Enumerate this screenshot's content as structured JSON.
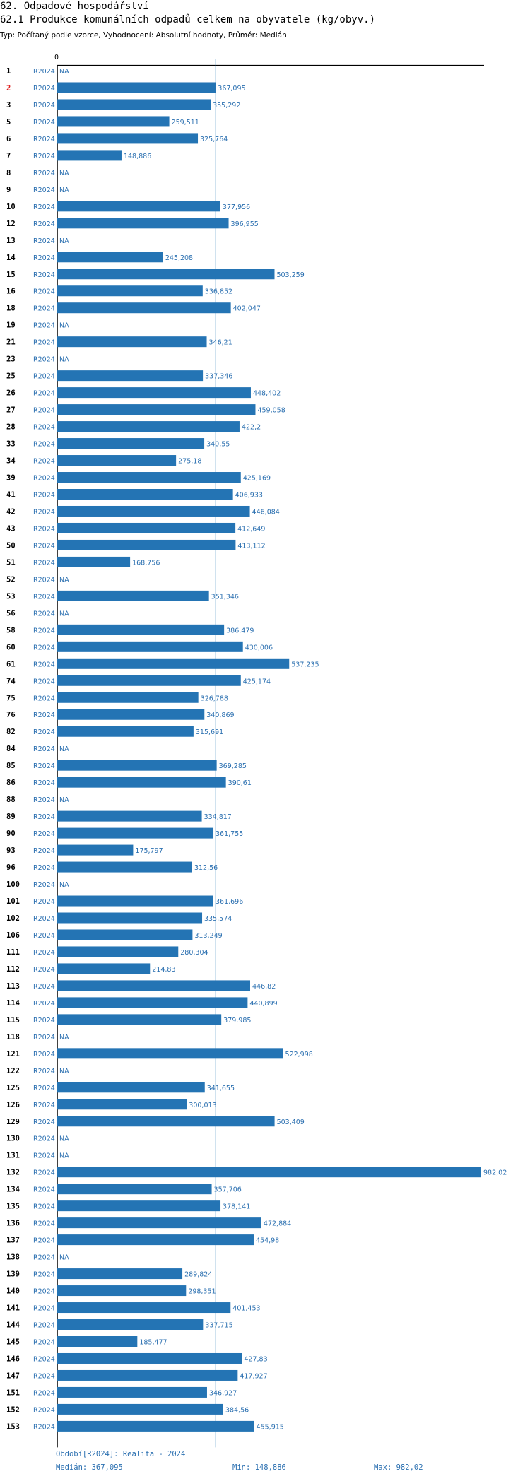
{
  "header": {
    "title": "62. Odpadové hospodářství",
    "subtitle": "62.1 Produkce komunálních odpadů celkem na obyvatele (kg/obyv.)",
    "type_line": "Typ: Počítaný podle vzorce, Vyhodnocení: Absolutní hodnoty, Průměr: Medián"
  },
  "colors": {
    "bar": "#2474b4",
    "label": "#2a6fb0",
    "highlight": "#e02020",
    "axis": "#000000"
  },
  "chart_data": {
    "type": "bar",
    "orientation": "horizontal",
    "period": "R2024",
    "zero_label": "0",
    "highlight_id": "2",
    "median": 367.095,
    "max_axis": 982.02,
    "rows": [
      {
        "id": "1",
        "period": "R2024",
        "value": null,
        "label": "NA"
      },
      {
        "id": "2",
        "period": "R2024",
        "value": 367.095,
        "label": "367,095"
      },
      {
        "id": "3",
        "period": "R2024",
        "value": 355.292,
        "label": "355,292"
      },
      {
        "id": "5",
        "period": "R2024",
        "value": 259.511,
        "label": "259,511"
      },
      {
        "id": "6",
        "period": "R2024",
        "value": 325.764,
        "label": "325,764"
      },
      {
        "id": "7",
        "period": "R2024",
        "value": 148.886,
        "label": "148,886"
      },
      {
        "id": "8",
        "period": "R2024",
        "value": null,
        "label": "NA"
      },
      {
        "id": "9",
        "period": "R2024",
        "value": null,
        "label": "NA"
      },
      {
        "id": "10",
        "period": "R2024",
        "value": 377.956,
        "label": "377,956"
      },
      {
        "id": "12",
        "period": "R2024",
        "value": 396.955,
        "label": "396,955"
      },
      {
        "id": "13",
        "period": "R2024",
        "value": null,
        "label": "NA"
      },
      {
        "id": "14",
        "period": "R2024",
        "value": 245.208,
        "label": "245,208"
      },
      {
        "id": "15",
        "period": "R2024",
        "value": 503.259,
        "label": "503,259"
      },
      {
        "id": "16",
        "period": "R2024",
        "value": 336.852,
        "label": "336,852"
      },
      {
        "id": "18",
        "period": "R2024",
        "value": 402.047,
        "label": "402,047"
      },
      {
        "id": "19",
        "period": "R2024",
        "value": null,
        "label": "NA"
      },
      {
        "id": "21",
        "period": "R2024",
        "value": 346.21,
        "label": "346,21"
      },
      {
        "id": "23",
        "period": "R2024",
        "value": null,
        "label": "NA"
      },
      {
        "id": "25",
        "period": "R2024",
        "value": 337.346,
        "label": "337,346"
      },
      {
        "id": "26",
        "period": "R2024",
        "value": 448.402,
        "label": "448,402"
      },
      {
        "id": "27",
        "period": "R2024",
        "value": 459.058,
        "label": "459,058"
      },
      {
        "id": "28",
        "period": "R2024",
        "value": 422.2,
        "label": "422,2"
      },
      {
        "id": "33",
        "period": "R2024",
        "value": 340.55,
        "label": "340,55"
      },
      {
        "id": "34",
        "period": "R2024",
        "value": 275.18,
        "label": "275,18"
      },
      {
        "id": "39",
        "period": "R2024",
        "value": 425.169,
        "label": "425,169"
      },
      {
        "id": "41",
        "period": "R2024",
        "value": 406.933,
        "label": "406,933"
      },
      {
        "id": "42",
        "period": "R2024",
        "value": 446.084,
        "label": "446,084"
      },
      {
        "id": "43",
        "period": "R2024",
        "value": 412.649,
        "label": "412,649"
      },
      {
        "id": "50",
        "period": "R2024",
        "value": 413.112,
        "label": "413,112"
      },
      {
        "id": "51",
        "period": "R2024",
        "value": 168.756,
        "label": "168,756"
      },
      {
        "id": "52",
        "period": "R2024",
        "value": null,
        "label": "NA"
      },
      {
        "id": "53",
        "period": "R2024",
        "value": 351.346,
        "label": "351,346"
      },
      {
        "id": "56",
        "period": "R2024",
        "value": null,
        "label": "NA"
      },
      {
        "id": "58",
        "period": "R2024",
        "value": 386.479,
        "label": "386,479"
      },
      {
        "id": "60",
        "period": "R2024",
        "value": 430.006,
        "label": "430,006"
      },
      {
        "id": "61",
        "period": "R2024",
        "value": 537.235,
        "label": "537,235"
      },
      {
        "id": "74",
        "period": "R2024",
        "value": 425.174,
        "label": "425,174"
      },
      {
        "id": "75",
        "period": "R2024",
        "value": 326.788,
        "label": "326,788"
      },
      {
        "id": "76",
        "period": "R2024",
        "value": 340.869,
        "label": "340,869"
      },
      {
        "id": "82",
        "period": "R2024",
        "value": 315.691,
        "label": "315,691"
      },
      {
        "id": "84",
        "period": "R2024",
        "value": null,
        "label": "NA"
      },
      {
        "id": "85",
        "period": "R2024",
        "value": 369.285,
        "label": "369,285"
      },
      {
        "id": "86",
        "period": "R2024",
        "value": 390.61,
        "label": "390,61"
      },
      {
        "id": "88",
        "period": "R2024",
        "value": null,
        "label": "NA"
      },
      {
        "id": "89",
        "period": "R2024",
        "value": 334.817,
        "label": "334,817"
      },
      {
        "id": "90",
        "period": "R2024",
        "value": 361.755,
        "label": "361,755"
      },
      {
        "id": "93",
        "period": "R2024",
        "value": 175.797,
        "label": "175,797"
      },
      {
        "id": "96",
        "period": "R2024",
        "value": 312.56,
        "label": "312,56"
      },
      {
        "id": "100",
        "period": "R2024",
        "value": null,
        "label": "NA"
      },
      {
        "id": "101",
        "period": "R2024",
        "value": 361.696,
        "label": "361,696"
      },
      {
        "id": "102",
        "period": "R2024",
        "value": 335.574,
        "label": "335,574"
      },
      {
        "id": "106",
        "period": "R2024",
        "value": 313.249,
        "label": "313,249"
      },
      {
        "id": "111",
        "period": "R2024",
        "value": 280.304,
        "label": "280,304"
      },
      {
        "id": "112",
        "period": "R2024",
        "value": 214.83,
        "label": "214,83"
      },
      {
        "id": "113",
        "period": "R2024",
        "value": 446.82,
        "label": "446,82"
      },
      {
        "id": "114",
        "period": "R2024",
        "value": 440.899,
        "label": "440,899"
      },
      {
        "id": "115",
        "period": "R2024",
        "value": 379.985,
        "label": "379,985"
      },
      {
        "id": "118",
        "period": "R2024",
        "value": null,
        "label": "NA"
      },
      {
        "id": "121",
        "period": "R2024",
        "value": 522.998,
        "label": "522,998"
      },
      {
        "id": "122",
        "period": "R2024",
        "value": null,
        "label": "NA"
      },
      {
        "id": "125",
        "period": "R2024",
        "value": 341.655,
        "label": "341,655"
      },
      {
        "id": "126",
        "period": "R2024",
        "value": 300.013,
        "label": "300,013"
      },
      {
        "id": "129",
        "period": "R2024",
        "value": 503.409,
        "label": "503,409"
      },
      {
        "id": "130",
        "period": "R2024",
        "value": null,
        "label": "NA"
      },
      {
        "id": "131",
        "period": "R2024",
        "value": null,
        "label": "NA"
      },
      {
        "id": "132",
        "period": "R2024",
        "value": 982.02,
        "label": "982,02"
      },
      {
        "id": "134",
        "period": "R2024",
        "value": 357.706,
        "label": "357,706"
      },
      {
        "id": "135",
        "period": "R2024",
        "value": 378.141,
        "label": "378,141"
      },
      {
        "id": "136",
        "period": "R2024",
        "value": 472.884,
        "label": "472,884"
      },
      {
        "id": "137",
        "period": "R2024",
        "value": 454.98,
        "label": "454,98"
      },
      {
        "id": "138",
        "period": "R2024",
        "value": null,
        "label": "NA"
      },
      {
        "id": "139",
        "period": "R2024",
        "value": 289.824,
        "label": "289,824"
      },
      {
        "id": "140",
        "period": "R2024",
        "value": 298.351,
        "label": "298,351"
      },
      {
        "id": "141",
        "period": "R2024",
        "value": 401.453,
        "label": "401,453"
      },
      {
        "id": "144",
        "period": "R2024",
        "value": 337.715,
        "label": "337,715"
      },
      {
        "id": "145",
        "period": "R2024",
        "value": 185.477,
        "label": "185,477"
      },
      {
        "id": "146",
        "period": "R2024",
        "value": 427.83,
        "label": "427,83"
      },
      {
        "id": "147",
        "period": "R2024",
        "value": 417.927,
        "label": "417,927"
      },
      {
        "id": "151",
        "period": "R2024",
        "value": 346.927,
        "label": "346,927"
      },
      {
        "id": "152",
        "period": "R2024",
        "value": 384.56,
        "label": "384,56"
      },
      {
        "id": "153",
        "period": "R2024",
        "value": 455.915,
        "label": "455,915"
      }
    ]
  },
  "footer": {
    "period_line": "Období[R2024]: Realita - 2024",
    "median_text": "Medián: 367,095",
    "min_text": "Min: 148,886",
    "max_text": "Max: 982,02"
  }
}
